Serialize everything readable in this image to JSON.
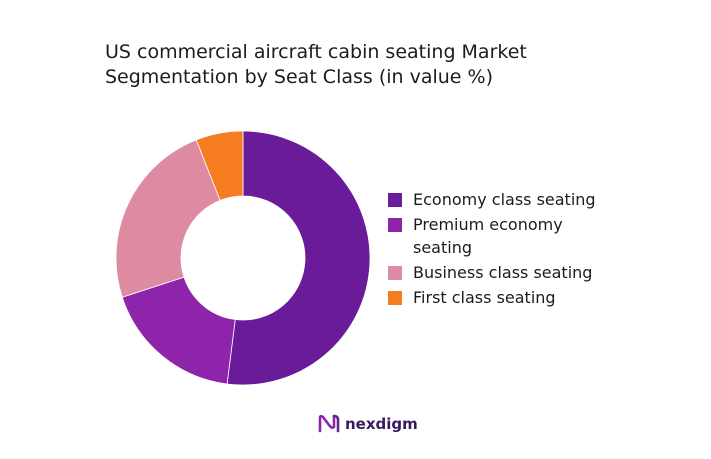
{
  "title_lines": [
    "US commercial aircraft cabin seating Market",
    "Segmentation by Seat Class (in value %)"
  ],
  "brand": {
    "name": "nexdigm"
  },
  "chart_data": {
    "type": "pie",
    "donut": true,
    "title": "US commercial aircraft cabin seating Market Segmentation by Seat Class (in value %)",
    "legend_position": "right",
    "categories": [
      "Economy class seating",
      "Premium economy seating",
      "Business class seating",
      "First class seating"
    ],
    "values": [
      52,
      18,
      24,
      6
    ],
    "colors": [
      "#6a1b9a",
      "#8e24aa",
      "#de8aa0",
      "#f57c20"
    ]
  }
}
